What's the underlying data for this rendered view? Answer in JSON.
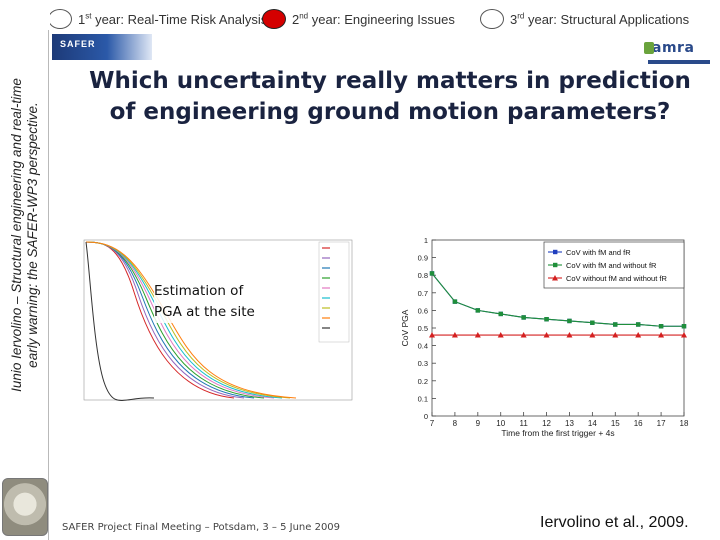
{
  "years": [
    {
      "label_prefix": "1",
      "label_sup": "st",
      "label_rest": " year: Real-Time Risk Analysis",
      "active": false
    },
    {
      "label_prefix": "2",
      "label_sup": "nd",
      "label_rest": " year: Engineering Issues",
      "active": true
    },
    {
      "label_prefix": "3",
      "label_sup": "rd",
      "label_rest": " year: Structural Applications",
      "active": false
    }
  ],
  "side_title": {
    "line1": "Iunio Iervolino – Structural engineering and real-time",
    "line2": "early warning: the SAFER-WP3 perspective."
  },
  "logos": {
    "safer": "SAFER",
    "amra": "amra"
  },
  "main_title": {
    "line1": "Which uncertainty really matters in prediction",
    "line2": "of engineering ground motion parameters?"
  },
  "left_figure": {
    "note_line1": "Estimation of",
    "note_line2": "PGA at the site"
  },
  "chart_data": {
    "type": "line",
    "ylabel": "CoV PGA",
    "xlabel": "Time from the first trigger + 4s",
    "x": [
      7,
      8,
      9,
      10,
      11,
      12,
      13,
      14,
      15,
      16,
      17,
      18
    ],
    "xlim": [
      7,
      18
    ],
    "ylim": [
      0,
      1
    ],
    "yticks": [
      0,
      0.1,
      0.2,
      0.3,
      0.4,
      0.5,
      0.6,
      0.7,
      0.8,
      0.9,
      1
    ],
    "legend_position": "top-right",
    "grid": false,
    "series": [
      {
        "name": "CoV with fM and fR",
        "legend_main": "CoV with f",
        "sub1": "M",
        "mid": " and f",
        "sub2": "R",
        "tail": "",
        "sub3": "",
        "color": "#1f3fbf",
        "marker": "square",
        "values": [
          0.81,
          0.65,
          0.6,
          0.58,
          0.56,
          0.55,
          0.54,
          0.53,
          0.52,
          0.52,
          0.51,
          0.51
        ]
      },
      {
        "name": "CoV with fM and without fR",
        "legend_main": "CoV with f",
        "sub1": "M",
        "mid": " and without f",
        "sub2": "R",
        "tail": "",
        "sub3": "",
        "color": "#1f8f3a",
        "marker": "square",
        "values": [
          0.81,
          0.65,
          0.6,
          0.58,
          0.56,
          0.55,
          0.54,
          0.53,
          0.52,
          0.52,
          0.51,
          0.51
        ]
      },
      {
        "name": "CoV without fM and without fR",
        "legend_main": "CoV without f",
        "sub1": "M",
        "mid": " and without f",
        "sub2": "R",
        "tail": "",
        "sub3": "",
        "color": "#d42020",
        "marker": "triangle",
        "values": [
          0.46,
          0.46,
          0.46,
          0.46,
          0.46,
          0.46,
          0.46,
          0.46,
          0.46,
          0.46,
          0.46,
          0.46
        ]
      }
    ]
  },
  "footer": "SAFER Project Final Meeting – Potsdam, 3 – 5 June 2009",
  "citation": "Iervolino et al., 2009."
}
